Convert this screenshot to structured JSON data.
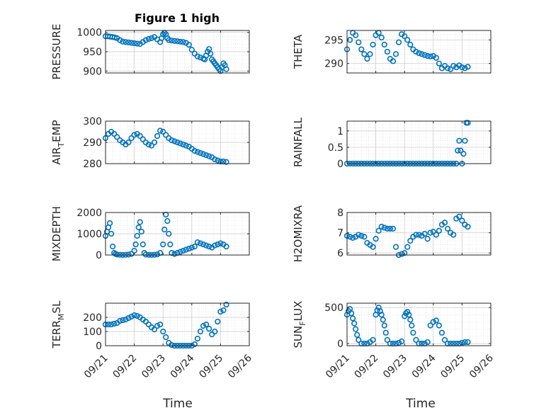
{
  "figure": {
    "title": "Figure 1 high"
  },
  "x_date_labels": [
    "09/21",
    "09/22",
    "09/23",
    "09/24",
    "09/25",
    "09/26"
  ],
  "chart_data": [
    {
      "type": "scatter",
      "id": "pressure",
      "ylabel": "PRESSURE",
      "ylabel_sub": "",
      "xlim": [
        0,
        5
      ],
      "ylim": [
        895,
        1005
      ],
      "yticks": [
        900,
        950,
        1000
      ],
      "grid": true,
      "x": [
        0,
        0.08,
        0.16,
        0.24,
        0.32,
        0.4,
        0.5,
        0.6,
        0.7,
        0.8,
        0.9,
        1.0,
        1.1,
        1.2,
        1.3,
        1.4,
        1.5,
        1.6,
        1.7,
        1.8,
        1.9,
        1.95,
        2.0,
        2.05,
        2.1,
        2.15,
        2.2,
        2.3,
        2.4,
        2.5,
        2.6,
        2.7,
        2.8,
        2.9,
        3.0,
        3.1,
        3.2,
        3.3,
        3.4,
        3.45,
        3.5,
        3.55,
        3.6,
        3.65,
        3.7,
        3.75,
        3.8,
        3.85,
        3.9,
        3.95,
        4.0,
        4.05,
        4.1,
        4.15,
        4.2
      ],
      "y": [
        990,
        990,
        989,
        988,
        987,
        985,
        980,
        976,
        975,
        974,
        973,
        972,
        971,
        970,
        975,
        980,
        983,
        985,
        988,
        982,
        975,
        985,
        995,
        999,
        995,
        985,
        980,
        979,
        978,
        977,
        976,
        975,
        973,
        968,
        955,
        945,
        938,
        935,
        932,
        930,
        940,
        950,
        957,
        945,
        930,
        925,
        920,
        915,
        910,
        905,
        900,
        910,
        920,
        915,
        905
      ]
    },
    {
      "type": "scatter",
      "id": "theta",
      "ylabel": "THETA",
      "ylabel_sub": "",
      "xlim": [
        0,
        5
      ],
      "ylim": [
        288,
        297
      ],
      "yticks": [
        290,
        295
      ],
      "grid": true,
      "x": [
        0,
        0.1,
        0.2,
        0.3,
        0.4,
        0.5,
        0.6,
        0.7,
        0.8,
        0.9,
        1.0,
        1.1,
        1.2,
        1.3,
        1.4,
        1.5,
        1.6,
        1.7,
        1.8,
        1.9,
        2.0,
        2.1,
        2.2,
        2.3,
        2.4,
        2.5,
        2.6,
        2.7,
        2.8,
        2.9,
        3.0,
        3.1,
        3.2,
        3.3,
        3.4,
        3.5,
        3.6,
        3.7,
        3.8,
        3.9,
        4.0,
        4.1,
        4.2
      ],
      "y": [
        293,
        295,
        296.5,
        296,
        294.5,
        293,
        292,
        291,
        292,
        294,
        296,
        296.5,
        295.5,
        294,
        292.5,
        291,
        290.5,
        292,
        294.5,
        296.2,
        295.8,
        295,
        294,
        293,
        292.5,
        292.2,
        292,
        291.8,
        291.6,
        291.5,
        291.6,
        291.2,
        290,
        289,
        289.5,
        289,
        288.8,
        289.5,
        289.2,
        289.6,
        289.2,
        289,
        289.3
      ]
    },
    {
      "type": "scatter",
      "id": "air_temp",
      "ylabel": "AIR",
      "ylabel_sub": "T",
      "ylabel_tail": "EMP",
      "xlim": [
        0,
        5
      ],
      "ylim": [
        280,
        300
      ],
      "yticks": [
        280,
        290,
        300
      ],
      "grid": true,
      "x": [
        0,
        0.1,
        0.2,
        0.3,
        0.4,
        0.5,
        0.6,
        0.7,
        0.8,
        0.9,
        1.0,
        1.1,
        1.2,
        1.3,
        1.4,
        1.5,
        1.6,
        1.7,
        1.8,
        1.9,
        2.0,
        2.1,
        2.2,
        2.3,
        2.4,
        2.5,
        2.6,
        2.7,
        2.8,
        2.9,
        3.0,
        3.1,
        3.2,
        3.3,
        3.4,
        3.5,
        3.6,
        3.7,
        3.8,
        3.9,
        4.0,
        4.1,
        4.2
      ],
      "y": [
        292,
        294,
        295,
        294,
        292.5,
        291,
        290,
        289,
        290,
        292,
        293.5,
        294,
        293,
        291.5,
        290,
        289,
        288.5,
        290,
        293,
        295.5,
        295,
        293.5,
        292,
        291,
        290.5,
        290,
        289.5,
        289,
        288.5,
        288,
        287,
        286,
        285.5,
        285,
        284.5,
        284,
        283.5,
        283,
        282,
        281.5,
        281,
        281,
        280.8
      ]
    },
    {
      "type": "scatter",
      "id": "rainfall",
      "ylabel": "RAINFALL",
      "ylabel_sub": "",
      "xlim": [
        0,
        5
      ],
      "ylim": [
        0,
        1.3
      ],
      "yticks": [
        0,
        0.5,
        1
      ],
      "grid": true,
      "x": [
        0,
        0.1,
        0.2,
        0.3,
        0.4,
        0.5,
        0.6,
        0.7,
        0.8,
        0.9,
        1.0,
        1.1,
        1.2,
        1.3,
        1.4,
        1.5,
        1.6,
        1.7,
        1.8,
        1.9,
        2.0,
        2.1,
        2.2,
        2.3,
        2.4,
        2.5,
        2.6,
        2.7,
        2.8,
        2.9,
        3.0,
        3.1,
        3.2,
        3.3,
        3.4,
        3.5,
        3.6,
        3.7,
        3.8,
        3.85,
        3.9,
        3.95,
        4.0,
        4.05,
        4.1,
        4.15,
        4.2
      ],
      "y": [
        0,
        0,
        0,
        0,
        0,
        0,
        0,
        0,
        0,
        0,
        0,
        0,
        0,
        0,
        0,
        0,
        0,
        0,
        0,
        0,
        0,
        0,
        0,
        0,
        0,
        0,
        0,
        0,
        0,
        0,
        0,
        0,
        0,
        0,
        0,
        0,
        0,
        0,
        0,
        0.4,
        0.7,
        0.4,
        0,
        0.3,
        0.7,
        1.25,
        1.25
      ]
    },
    {
      "type": "scatter",
      "id": "mixdepth",
      "ylabel": "MIXDEPTH",
      "ylabel_sub": "",
      "xlim": [
        0,
        5
      ],
      "ylim": [
        0,
        2000
      ],
      "yticks": [
        0,
        1000,
        2000
      ],
      "grid": true,
      "x": [
        0,
        0.05,
        0.1,
        0.15,
        0.2,
        0.25,
        0.3,
        0.35,
        0.4,
        0.5,
        0.6,
        0.7,
        0.8,
        0.9,
        1.0,
        1.05,
        1.1,
        1.15,
        1.2,
        1.25,
        1.3,
        1.35,
        1.4,
        1.5,
        1.6,
        1.7,
        1.8,
        1.9,
        2.0,
        2.05,
        2.1,
        2.15,
        2.2,
        2.25,
        2.3,
        2.4,
        2.5,
        2.6,
        2.7,
        2.8,
        2.9,
        3.0,
        3.1,
        3.2,
        3.3,
        3.4,
        3.5,
        3.6,
        3.7,
        3.8,
        3.9,
        4.0,
        4.1,
        4.2
      ],
      "y": [
        900,
        1100,
        1300,
        1500,
        1000,
        400,
        100,
        50,
        20,
        10,
        5,
        10,
        20,
        50,
        200,
        500,
        900,
        1300,
        1550,
        1100,
        500,
        100,
        20,
        10,
        5,
        10,
        30,
        100,
        500,
        1200,
        1900,
        1600,
        1000,
        500,
        100,
        50,
        100,
        150,
        200,
        250,
        300,
        350,
        400,
        600,
        550,
        500,
        450,
        400,
        350,
        450,
        500,
        550,
        500,
        400
      ]
    },
    {
      "type": "scatter",
      "id": "h2omixra",
      "ylabel": "H2OMIXRA",
      "ylabel_sub": "",
      "xlim": [
        0,
        5
      ],
      "ylim": [
        5.9,
        8
      ],
      "yticks": [
        6,
        7,
        8
      ],
      "grid": true,
      "x": [
        0,
        0.1,
        0.2,
        0.3,
        0.4,
        0.5,
        0.6,
        0.7,
        0.8,
        0.9,
        1.0,
        1.1,
        1.2,
        1.3,
        1.4,
        1.5,
        1.6,
        1.7,
        1.8,
        1.9,
        2.0,
        2.1,
        2.2,
        2.3,
        2.4,
        2.5,
        2.6,
        2.7,
        2.8,
        2.9,
        3.0,
        3.1,
        3.2,
        3.3,
        3.4,
        3.5,
        3.6,
        3.7,
        3.8,
        3.9,
        4.0,
        4.1,
        4.2
      ],
      "y": [
        6.85,
        6.8,
        6.75,
        6.8,
        6.9,
        6.85,
        6.8,
        6.5,
        6.4,
        6.3,
        6.7,
        7.1,
        7.3,
        7.25,
        7.2,
        7.2,
        7.2,
        6.3,
        5.9,
        5.95,
        6.0,
        6.3,
        6.6,
        6.8,
        6.9,
        6.9,
        6.85,
        6.95,
        6.7,
        7.0,
        7.05,
        6.9,
        7.1,
        7.4,
        7.5,
        7.2,
        7.0,
        6.9,
        7.7,
        7.8,
        7.6,
        7.4,
        7.3
      ]
    },
    {
      "type": "scatter",
      "id": "terr_msl",
      "ylabel": "TERR",
      "ylabel_sub": "M",
      "ylabel_tail": "SL",
      "xlim": [
        0,
        5
      ],
      "ylim": [
        0,
        300
      ],
      "yticks": [
        0,
        100,
        200
      ],
      "grid": true,
      "x": [
        0,
        0.1,
        0.2,
        0.3,
        0.4,
        0.5,
        0.6,
        0.7,
        0.8,
        0.9,
        1.0,
        1.1,
        1.2,
        1.3,
        1.4,
        1.5,
        1.6,
        1.7,
        1.8,
        1.9,
        2.0,
        2.1,
        2.2,
        2.3,
        2.4,
        2.5,
        2.6,
        2.7,
        2.8,
        2.9,
        3.0,
        3.1,
        3.2,
        3.3,
        3.4,
        3.5,
        3.6,
        3.7,
        3.8,
        3.9,
        4.0,
        4.1,
        4.2
      ],
      "y": [
        150,
        150,
        150,
        155,
        160,
        175,
        180,
        185,
        195,
        205,
        215,
        210,
        200,
        185,
        170,
        150,
        130,
        115,
        140,
        150,
        100,
        60,
        20,
        5,
        0,
        0,
        0,
        0,
        0,
        0,
        0,
        10,
        50,
        100,
        140,
        150,
        120,
        80,
        100,
        170,
        240,
        250,
        290
      ]
    },
    {
      "type": "scatter",
      "id": "sun_flux",
      "ylabel": "SUN",
      "ylabel_sub": "F",
      "ylabel_tail": "LUX",
      "xlim": [
        0,
        5
      ],
      "ylim": [
        -30,
        560
      ],
      "yticks": [
        0,
        500
      ],
      "grid": true,
      "x": [
        0,
        0.05,
        0.1,
        0.15,
        0.2,
        0.25,
        0.3,
        0.35,
        0.4,
        0.5,
        0.6,
        0.7,
        0.8,
        0.9,
        1.0,
        1.05,
        1.1,
        1.15,
        1.2,
        1.25,
        1.3,
        1.35,
        1.4,
        1.5,
        1.6,
        1.7,
        1.8,
        1.9,
        2.0,
        2.05,
        2.1,
        2.15,
        2.2,
        2.25,
        2.3,
        2.4,
        2.5,
        2.6,
        2.7,
        2.8,
        2.9,
        3.0,
        3.1,
        3.2,
        3.3,
        3.4,
        3.5,
        3.6,
        3.7,
        3.8,
        3.9,
        4.0,
        4.1,
        4.2
      ],
      "y": [
        400,
        450,
        480,
        420,
        350,
        280,
        200,
        120,
        50,
        0,
        0,
        0,
        20,
        50,
        400,
        460,
        500,
        450,
        400,
        330,
        250,
        150,
        50,
        0,
        0,
        0,
        10,
        30,
        380,
        420,
        440,
        400,
        330,
        250,
        150,
        50,
        0,
        0,
        0,
        20,
        250,
        300,
        320,
        250,
        150,
        50,
        0,
        0,
        0,
        0,
        0,
        10,
        20,
        20
      ]
    }
  ],
  "x_axis": {
    "label": "Time"
  }
}
